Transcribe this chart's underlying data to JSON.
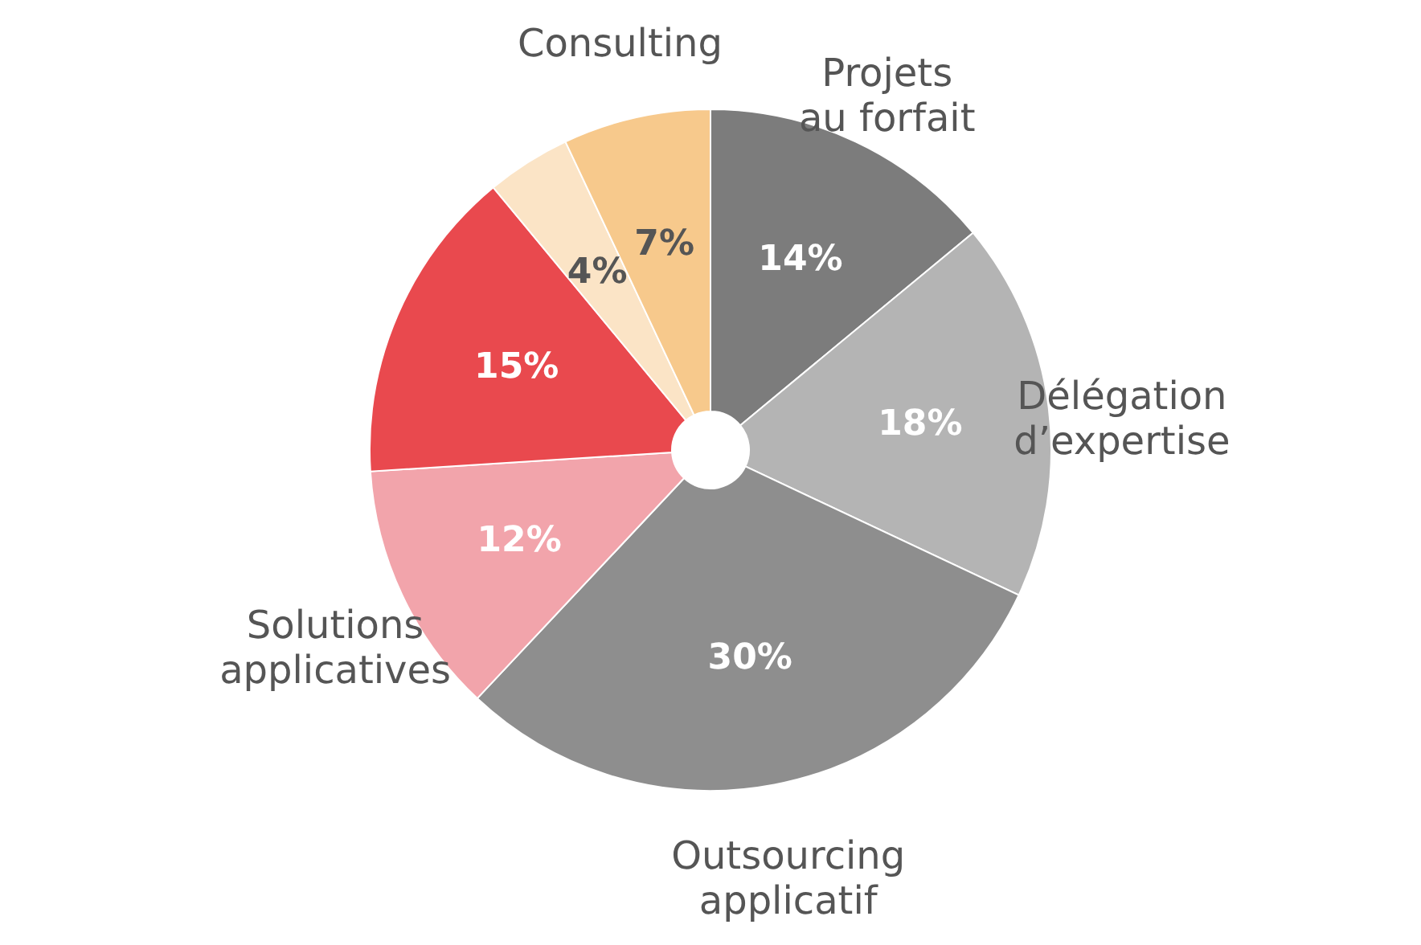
{
  "chart_data": {
    "type": "pie",
    "categories": [
      "Projets au forfait",
      "Délégation d’expertise",
      "Outsourcing applicatif",
      "Solutions applicatives",
      null,
      null,
      "Consulting"
    ],
    "values": [
      14,
      18,
      30,
      12,
      15,
      4,
      7
    ],
    "value_labels": [
      "14%",
      "18%",
      "30%",
      "12%",
      "15%",
      "4%",
      "7%"
    ],
    "colors": [
      "#7c7c7c",
      "#b4b4b4",
      "#8e8e8e",
      "#f2a4ab",
      "#e9494e",
      "#fbe4c6",
      "#f7c98c"
    ]
  }
}
